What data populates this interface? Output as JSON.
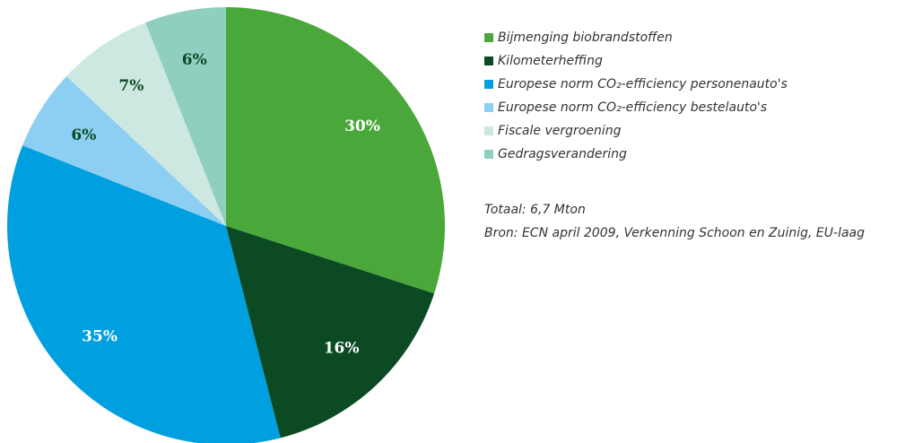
{
  "chart_data": {
    "type": "pie",
    "categories": [
      "Bijmenging biobrandstoffen",
      "Kilometerheffing",
      "Europese norm CO₂-efficiency personenauto's",
      "Europese norm CO₂-efficiency bestelauto's",
      "Fiscale vergroening",
      "Gedragsverandering"
    ],
    "values": [
      30,
      16,
      35,
      6,
      7,
      6
    ],
    "value_labels": [
      "30%",
      "16%",
      "35%",
      "6%",
      "7%",
      "6%"
    ],
    "colors": [
      "#4aa83a",
      "#0b4a22",
      "#009fe0",
      "#8dcff2",
      "#cde8e0",
      "#8fcfc0"
    ],
    "label_colors": [
      "#ffffff",
      "#ffffff",
      "#ffffff",
      "#0b4a22",
      "#0b4a22",
      "#0b4a22"
    ],
    "total_note": "Totaal: 6,7 Mton",
    "source": "Bron: ECN april 2009, Verkenning Schoon en Zuinig, EU-laag",
    "legend": "right"
  }
}
